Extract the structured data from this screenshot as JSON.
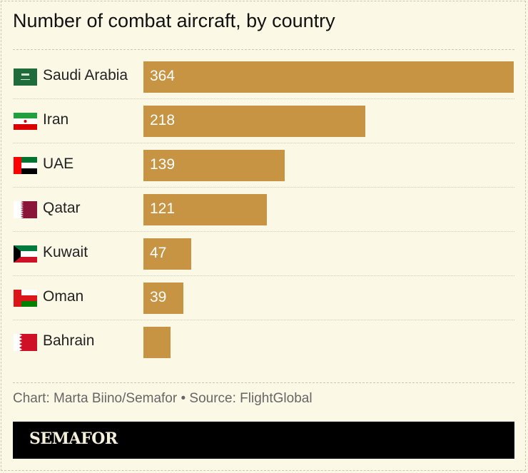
{
  "chart_data": {
    "type": "bar",
    "orientation": "horizontal",
    "title": "Number of combat aircraft, by country",
    "categories": [
      "Saudi Arabia",
      "Iran",
      "UAE",
      "Qatar",
      "Kuwait",
      "Oman",
      "Bahrain"
    ],
    "values": [
      364,
      218,
      139,
      121,
      47,
      39,
      27
    ],
    "data_labels": [
      "364",
      "218",
      "139",
      "121",
      "47",
      "39",
      ""
    ],
    "bar_color": "#c79443",
    "xlim": [
      0,
      364
    ],
    "grid": false
  },
  "flags": [
    "saudi-arabia",
    "iran",
    "uae",
    "qatar",
    "kuwait",
    "oman",
    "bahrain"
  ],
  "footer": {
    "credit": "Chart: Marta Biino/Semafor • Source: FlightGlobal",
    "brand": "SEMAFOR"
  }
}
